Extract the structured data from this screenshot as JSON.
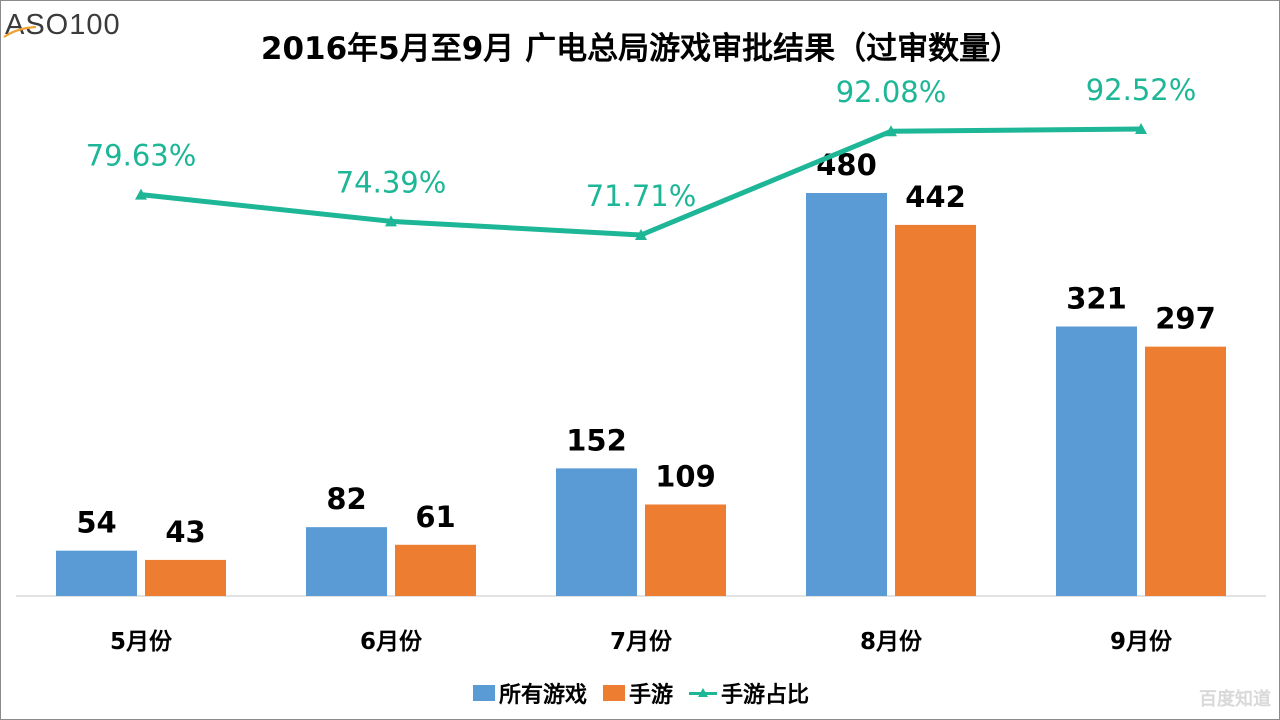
{
  "logo": {
    "text": "ASO100"
  },
  "watermark": "百度知道",
  "colors": {
    "series1": "#5b9bd5",
    "series2": "#ed7d31",
    "series3": "#1db696",
    "axis": "#d9d9d9",
    "label": "#000000"
  },
  "chart_data": {
    "type": "bar",
    "title": "2016年5月至9月 广电总局游戏审批结果（过审数量）",
    "categories": [
      "5月份",
      "6月份",
      "7月份",
      "8月份",
      "9月份"
    ],
    "series": [
      {
        "name": "所有游戏",
        "kind": "bar",
        "values": [
          54,
          82,
          152,
          480,
          321
        ],
        "labels": [
          "54",
          "82",
          "152",
          "480",
          "321"
        ]
      },
      {
        "name": "手游",
        "kind": "bar",
        "values": [
          43,
          61,
          109,
          442,
          297
        ],
        "labels": [
          "43",
          "61",
          "109",
          "442",
          "297"
        ]
      },
      {
        "name": "手游占比",
        "kind": "line",
        "marker": "triangle",
        "values": [
          79.63,
          74.39,
          71.71,
          92.08,
          92.52
        ],
        "labels": [
          "79.63%",
          "74.39%",
          "71.71%",
          "92.08%",
          "92.52%"
        ]
      }
    ],
    "legend_position": "bottom",
    "grid": false
  }
}
